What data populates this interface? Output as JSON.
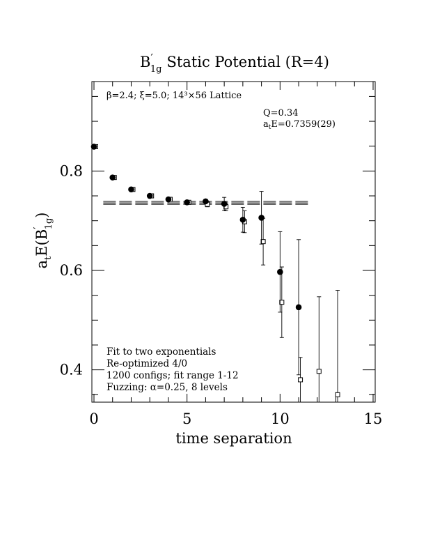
{
  "chart_data": {
    "type": "scatter",
    "title_main": "B",
    "title_prime": "′",
    "title_sub": "1g",
    "title_rest": "Static Potential (R=4)",
    "xlabel": "time separation",
    "ylabel_a": "a",
    "ylabel_t": "t",
    "ylabel_rest": "E(B",
    "ylabel_prime": "′",
    "ylabel_sub": "1g",
    "ylabel_close": ")",
    "xlim": [
      0,
      15
    ],
    "ylim": [
      0.335,
      0.98
    ],
    "x_ticks": [
      0,
      5,
      10,
      15
    ],
    "x_tick_labels": [
      "0",
      "5",
      "10",
      "15"
    ],
    "y_ticks": [
      0.4,
      0.6,
      0.8
    ],
    "y_tick_labels": [
      "0.4",
      "0.6",
      "0.8"
    ],
    "annotation_top": "β=2.4; ξ=5.0; 14³×56 Lattice",
    "q_label": "Q=0.34",
    "ate_label": "a",
    "ate_sub": "t",
    "ate_rest": "E=0.7359(29)",
    "notes": [
      "Fit to two exponentials",
      "Re-optimized 4/0",
      "1200 configs; fit range 1-12",
      "Fuzzing: α=0.25, 8 levels"
    ],
    "fit": {
      "value": 0.7359,
      "error": 0.0029,
      "x_range": [
        0.5,
        11.5
      ]
    },
    "series": [
      {
        "marker": "filled-circle",
        "x": [
          0,
          1,
          2,
          3,
          4,
          5,
          6,
          7,
          8,
          9,
          10,
          11
        ],
        "y": [
          0.849,
          0.787,
          0.763,
          0.75,
          0.743,
          0.737,
          0.739,
          0.734,
          0.702,
          0.706,
          0.597,
          0.526
        ],
        "err": [
          0.002,
          0.002,
          0.002,
          0.002,
          0.002,
          0.003,
          0.004,
          0.013,
          0.025,
          0.053,
          0.081,
          0.136
        ]
      },
      {
        "marker": "open-square",
        "x": [
          0,
          1,
          2,
          3,
          4,
          5,
          6,
          7,
          8,
          9,
          10,
          11,
          12,
          13
        ],
        "y": [
          0.849,
          0.787,
          0.763,
          0.75,
          0.743,
          0.737,
          0.733,
          0.728,
          0.698,
          0.658,
          0.536,
          0.38,
          0.397,
          0.35
        ],
        "err": [
          0.002,
          0.002,
          0.002,
          0.002,
          0.002,
          0.003,
          0.005,
          0.008,
          0.022,
          0.047,
          0.071,
          0.045,
          0.15,
          0.21
        ]
      }
    ]
  }
}
